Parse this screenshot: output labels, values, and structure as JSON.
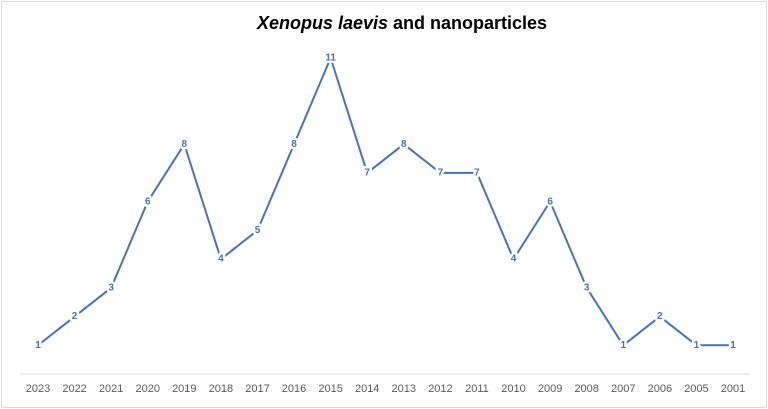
{
  "chart_data": {
    "type": "line",
    "title": [
      "Xenopus laevis",
      "and nanoparticles"
    ],
    "categories": [
      "2023",
      "2022",
      "2021",
      "2020",
      "2019",
      "2018",
      "2017",
      "2016",
      "2015",
      "2014",
      "2013",
      "2012",
      "2011",
      "2010",
      "2009",
      "2008",
      "2007",
      "2006",
      "2005",
      "2001"
    ],
    "series": [
      {
        "color": "#4472c4",
        "values": [
          1,
          2,
          3,
          6,
          8,
          4,
          5,
          8,
          11,
          7,
          8,
          7,
          7,
          4,
          6,
          3,
          1,
          2,
          1,
          1
        ]
      }
    ],
    "ylim": [
      0,
      11
    ]
  }
}
